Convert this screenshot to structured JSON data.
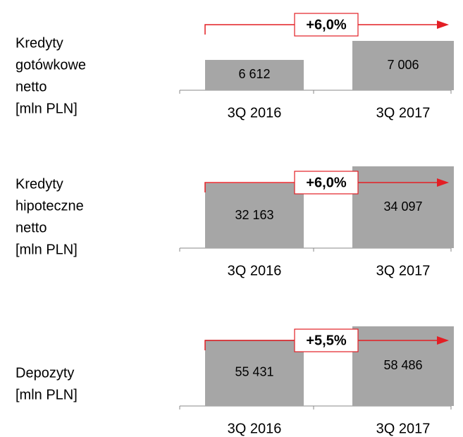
{
  "chart_data": [
    {
      "type": "bar",
      "title": [
        "Kredyty",
        "gotówkowe",
        "netto",
        "[mln PLN]"
      ],
      "categories": [
        "3Q 2016",
        "3Q 2017"
      ],
      "values": [
        6612,
        7006
      ],
      "value_labels": [
        "6 612",
        "7 006"
      ],
      "annotation": "+6,0%",
      "color": "#a6a6a6",
      "arrow_color": "#e31e24",
      "ylim": [
        5984,
        7736
      ]
    },
    {
      "type": "bar",
      "title": [
        "Kredyty",
        "hipoteczne",
        "netto",
        "[mln PLN]"
      ],
      "categories": [
        "3Q 2016",
        "3Q 2017"
      ],
      "values": [
        32163,
        34097
      ],
      "value_labels": [
        "32 163",
        "34 097"
      ],
      "annotation": "+6,0%",
      "color": "#a6a6a6",
      "arrow_color": "#e31e24",
      "ylim": [
        24750,
        34420
      ]
    },
    {
      "type": "bar",
      "title": [
        "Depozyty",
        "[mln PLN]"
      ],
      "categories": [
        "3Q 2016",
        "3Q 2017"
      ],
      "values": [
        55431,
        58486
      ],
      "value_labels": [
        "55 431",
        "58 486"
      ],
      "annotation": "+5,5%",
      "color": "#a6a6a6",
      "arrow_color": "#e31e24",
      "ylim": [
        40318,
        59611
      ]
    }
  ]
}
